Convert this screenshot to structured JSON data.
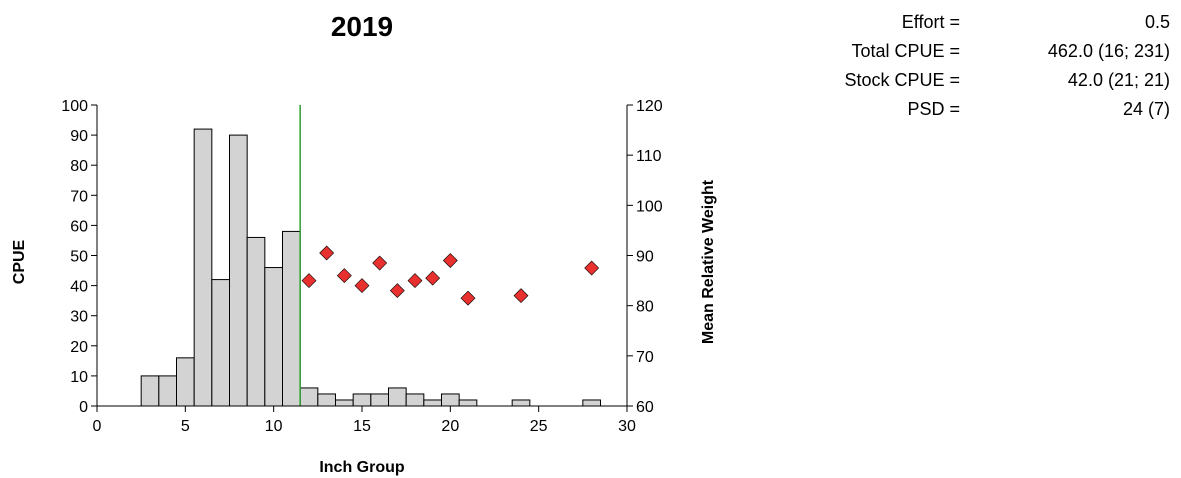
{
  "chart_data": {
    "type": "bar",
    "title": "2019",
    "xlabel": "Inch Group",
    "ylabel": "CPUE",
    "y2label": "Mean Relative Weight",
    "xlim": [
      0,
      30
    ],
    "ylim": [
      0,
      100
    ],
    "y2lim": [
      60,
      120
    ],
    "x_ticks": [
      0,
      5,
      10,
      15,
      20,
      25,
      30
    ],
    "y_ticks": [
      0,
      10,
      20,
      30,
      40,
      50,
      60,
      70,
      80,
      90,
      100
    ],
    "y2_ticks": [
      60,
      70,
      80,
      90,
      100,
      110,
      120
    ],
    "grid": false,
    "legend": "none",
    "bar_color": "#d3d3d3",
    "bar_edge_color": "#000000",
    "marker_color": "#e8312f",
    "line_color": "#2e9e2e",
    "series": [
      {
        "type": "bar",
        "axis": "left",
        "x": [
          3,
          4,
          5,
          6,
          7,
          8,
          9,
          10,
          11,
          12,
          13,
          14,
          15,
          16,
          17,
          18,
          19,
          20,
          21,
          24,
          28
        ],
        "values": [
          10,
          10,
          16,
          92,
          42,
          90,
          56,
          46,
          58,
          6,
          4,
          2,
          4,
          4,
          6,
          4,
          2,
          4,
          2,
          2,
          2
        ]
      },
      {
        "type": "scatter",
        "axis": "right",
        "x": [
          12,
          13,
          14,
          15,
          16,
          17,
          18,
          19,
          20,
          21,
          24,
          28
        ],
        "values": [
          85,
          90.5,
          86,
          84,
          88.5,
          83,
          85,
          85.5,
          89,
          81.5,
          82,
          87.5
        ]
      }
    ],
    "vline": {
      "x": 11.5
    }
  },
  "stats": [
    {
      "label": "Effort =",
      "value": "0.5"
    },
    {
      "label": "Total CPUE =",
      "value": "462.0 (16; 231)"
    },
    {
      "label": "Stock CPUE =",
      "value": "42.0 (21; 21)"
    },
    {
      "label": "PSD =",
      "value": "24 (7)"
    }
  ]
}
